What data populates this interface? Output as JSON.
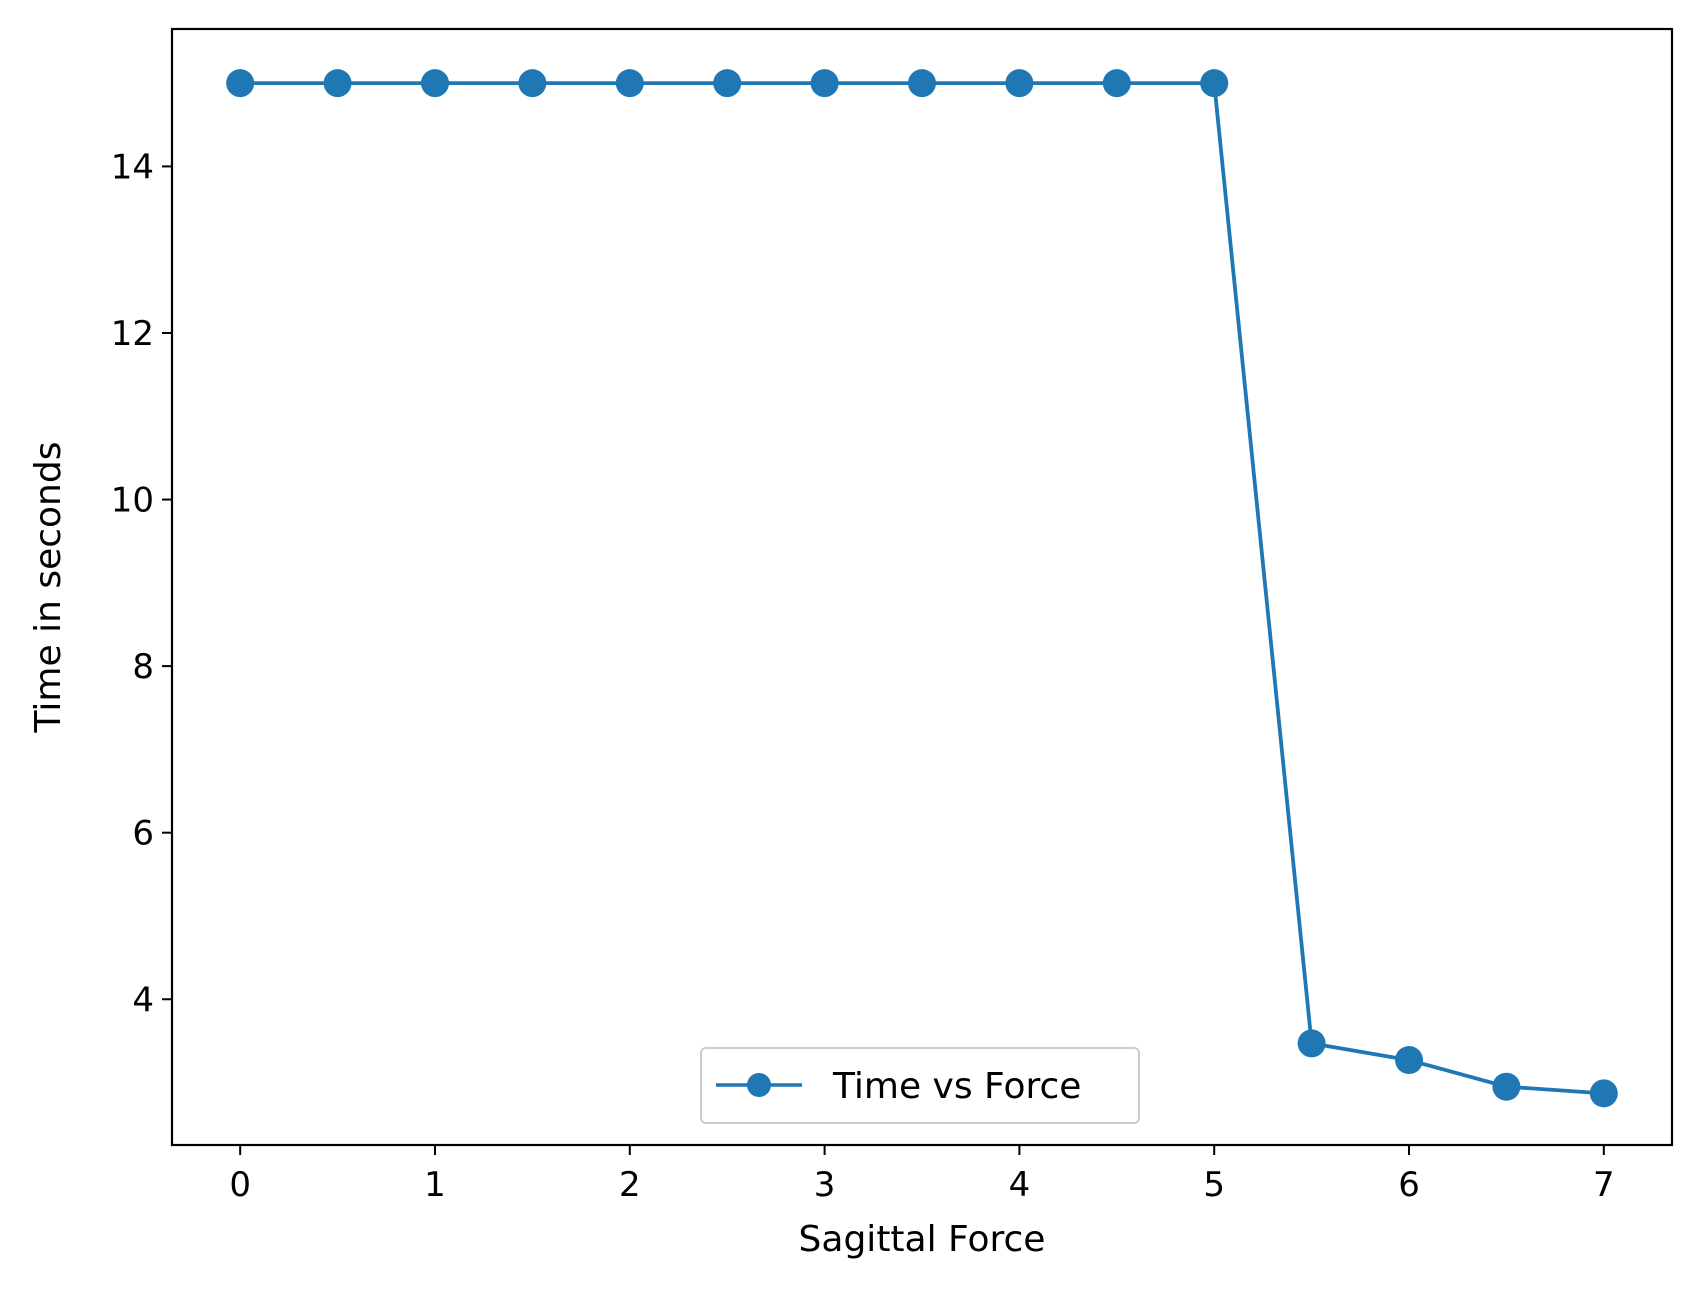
{
  "chart_data": {
    "type": "line",
    "title": "",
    "xlabel": "Sagittal Force",
    "ylabel": "Time in seconds",
    "xlim": [
      -0.35,
      7.35
    ],
    "ylim": [
      2.25,
      15.65
    ],
    "xticks": [
      0,
      1,
      2,
      3,
      4,
      5,
      6,
      7
    ],
    "yticks": [
      4,
      6,
      8,
      10,
      12,
      14
    ],
    "grid": false,
    "legend_position": "lower center",
    "series": [
      {
        "name": "Time vs Force",
        "color": "#1f77b4",
        "marker": "circle",
        "x": [
          0,
          0.5,
          1,
          1.5,
          2,
          2.5,
          3,
          3.5,
          4,
          4.5,
          5,
          5.5,
          6,
          6.5,
          7
        ],
        "y": [
          15.0,
          15.0,
          15.0,
          15.0,
          15.0,
          15.0,
          15.0,
          15.0,
          15.0,
          15.0,
          15.0,
          3.47,
          3.27,
          2.95,
          2.87
        ]
      }
    ]
  }
}
